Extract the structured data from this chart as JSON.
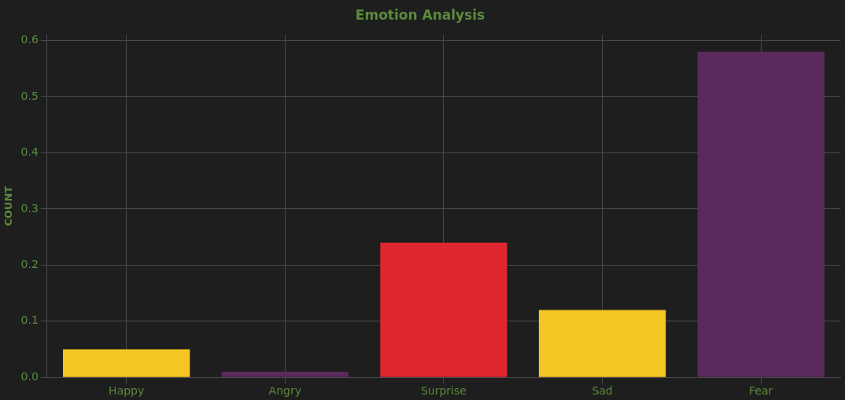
{
  "chart_data": {
    "type": "bar",
    "title": "Emotion Analysis",
    "ylabel": "COUNT",
    "categories": [
      "Happy",
      "Angry",
      "Surprise",
      "Sad",
      "Fear"
    ],
    "values": [
      0.05,
      0.01,
      0.24,
      0.12,
      0.58
    ],
    "colors": [
      "#f5c623",
      "#5a2a5c",
      "#e0262e",
      "#f5c623",
      "#5a2a5c"
    ],
    "ylim": [
      0,
      0.61
    ],
    "yticks": [
      {
        "value": 0,
        "label": "0.0"
      },
      0.1,
      0.2,
      0.3,
      0.4,
      0.5,
      0.6
    ],
    "grid": true
  }
}
